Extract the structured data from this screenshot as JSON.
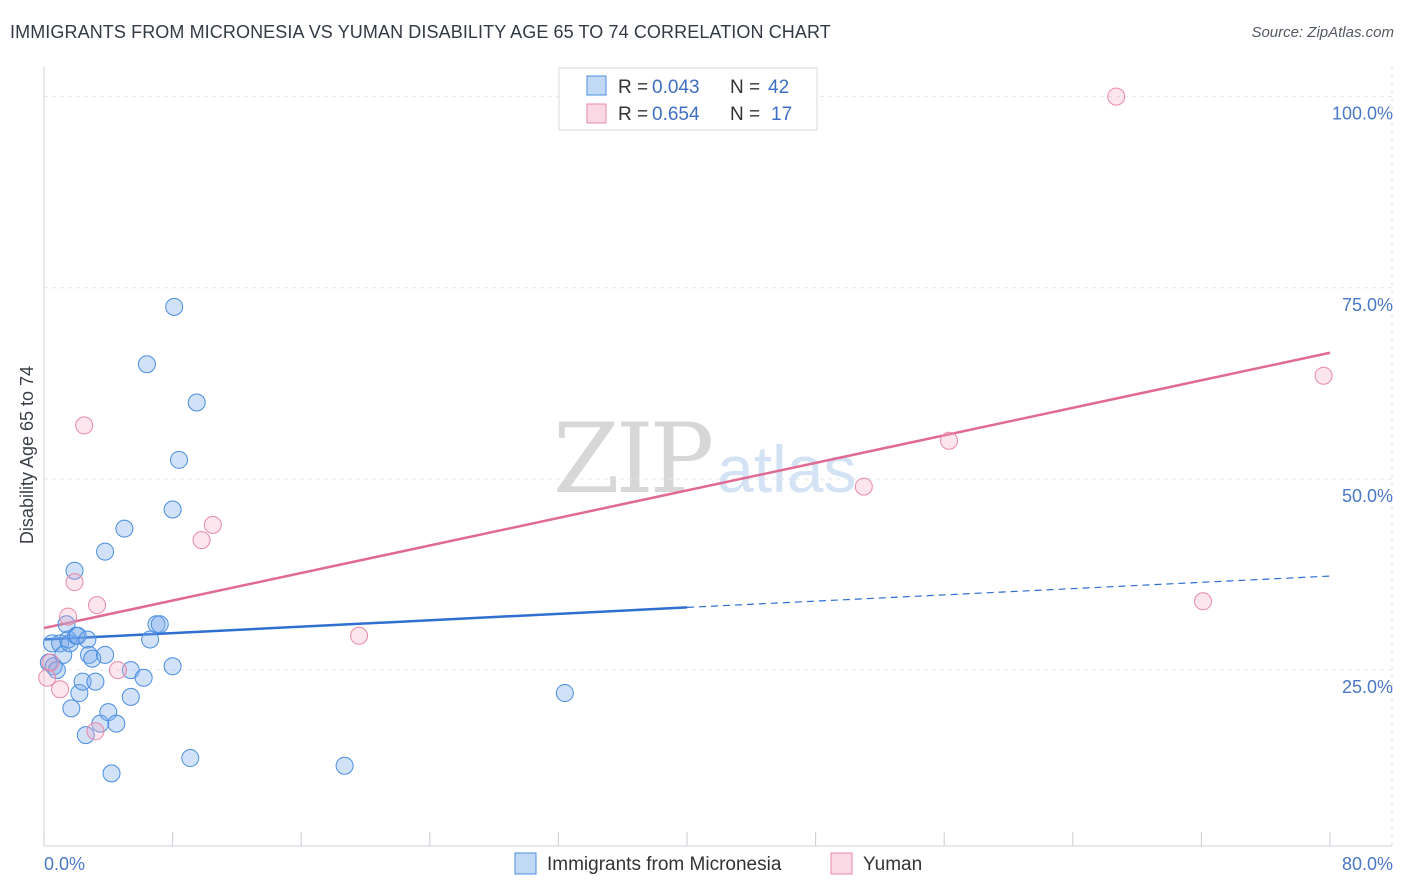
{
  "header": {
    "title": "IMMIGRANTS FROM MICRONESIA VS YUMAN DISABILITY AGE 65 TO 74 CORRELATION CHART",
    "source": "Source: ZipAtlas.com"
  },
  "watermark": {
    "zip": "ZIP",
    "atlas": "atlas"
  },
  "colors": {
    "blue": "#4a8ee0",
    "blue_fill": "rgba(120,170,235,0.35)",
    "blue_line": "#2e6fd0",
    "pink": "#e88aa8",
    "pink_fill": "rgba(244,170,195,0.30)",
    "pink_line": "#e06a93",
    "grid": "#e3e6ea",
    "tick_label": "#4a78c6"
  },
  "legend": {
    "rows": [
      {
        "r_label": "R =",
        "r_value": "0.043",
        "n_label": "N =",
        "n_value": "42"
      },
      {
        "r_label": "R =",
        "r_value": "0.654",
        "n_label": "N =",
        "n_value": "17"
      }
    ]
  },
  "chart_data": {
    "type": "scatter",
    "title": "IMMIGRANTS FROM MICRONESIA VS YUMAN DISABILITY AGE 65 TO 74 CORRELATION CHART",
    "xlabel": "",
    "ylabel": "Disability Age 65 to 74",
    "xlim": [
      0,
      80
    ],
    "ylim": [
      2,
      104
    ],
    "x_tick_labels": [
      "0.0%",
      "80.0%"
    ],
    "y_ticks": [
      25,
      50,
      75,
      100
    ],
    "y_tick_labels": [
      "25.0%",
      "50.0%",
      "75.0%",
      "100.0%"
    ],
    "grid": true,
    "series": [
      {
        "name": "Immigrants from Micronesia",
        "color": "#4a8ee0",
        "points": [
          [
            0.3,
            26
          ],
          [
            0.5,
            28.5
          ],
          [
            0.6,
            25.5
          ],
          [
            0.8,
            25
          ],
          [
            1,
            28.5
          ],
          [
            1.2,
            27
          ],
          [
            1.4,
            31
          ],
          [
            1.5,
            29
          ],
          [
            1.6,
            28.5
          ],
          [
            1.7,
            20
          ],
          [
            1.9,
            38
          ],
          [
            2,
            29.5
          ],
          [
            2.1,
            29.5
          ],
          [
            2.2,
            22
          ],
          [
            2.4,
            23.5
          ],
          [
            2.6,
            16.5
          ],
          [
            2.7,
            29
          ],
          [
            2.8,
            27
          ],
          [
            3,
            26.5
          ],
          [
            3.2,
            23.5
          ],
          [
            3.5,
            18
          ],
          [
            3.8,
            27
          ],
          [
            3.8,
            40.5
          ],
          [
            4,
            19.5
          ],
          [
            4.2,
            11.5
          ],
          [
            4.5,
            18
          ],
          [
            5,
            43.5
          ],
          [
            5.4,
            25
          ],
          [
            5.4,
            21.5
          ],
          [
            6.2,
            24
          ],
          [
            6.4,
            65
          ],
          [
            6.6,
            29
          ],
          [
            7,
            31
          ],
          [
            7.2,
            31
          ],
          [
            8,
            25.5
          ],
          [
            8.0,
            46
          ],
          [
            8.1,
            72.5
          ],
          [
            8.4,
            52.5
          ],
          [
            9.1,
            13.5
          ],
          [
            9.5,
            60
          ],
          [
            18.7,
            12.5
          ],
          [
            32.4,
            22
          ]
        ]
      },
      {
        "name": "Yuman",
        "color": "#e88aa8",
        "points": [
          [
            0.2,
            24
          ],
          [
            0.4,
            26
          ],
          [
            1,
            22.5
          ],
          [
            1.5,
            32
          ],
          [
            1.9,
            36.5
          ],
          [
            2.5,
            57
          ],
          [
            3.2,
            17
          ],
          [
            3.3,
            33.5
          ],
          [
            4.6,
            25
          ],
          [
            9.8,
            42
          ],
          [
            10.5,
            44
          ],
          [
            19.6,
            29.5
          ],
          [
            51,
            49
          ],
          [
            56.3,
            55
          ],
          [
            66.7,
            100
          ],
          [
            72.1,
            34
          ],
          [
            79.6,
            63.5
          ]
        ]
      }
    ],
    "trendlines": [
      {
        "series": "Immigrants from Micronesia",
        "x": [
          0,
          40,
          80
        ],
        "y": [
          29,
          33.2,
          37.3
        ],
        "solid_until_x": 40
      },
      {
        "series": "Yuman",
        "x": [
          0,
          80
        ],
        "y": [
          30.5,
          66.5
        ]
      }
    ],
    "legend_position": "top-center"
  }
}
